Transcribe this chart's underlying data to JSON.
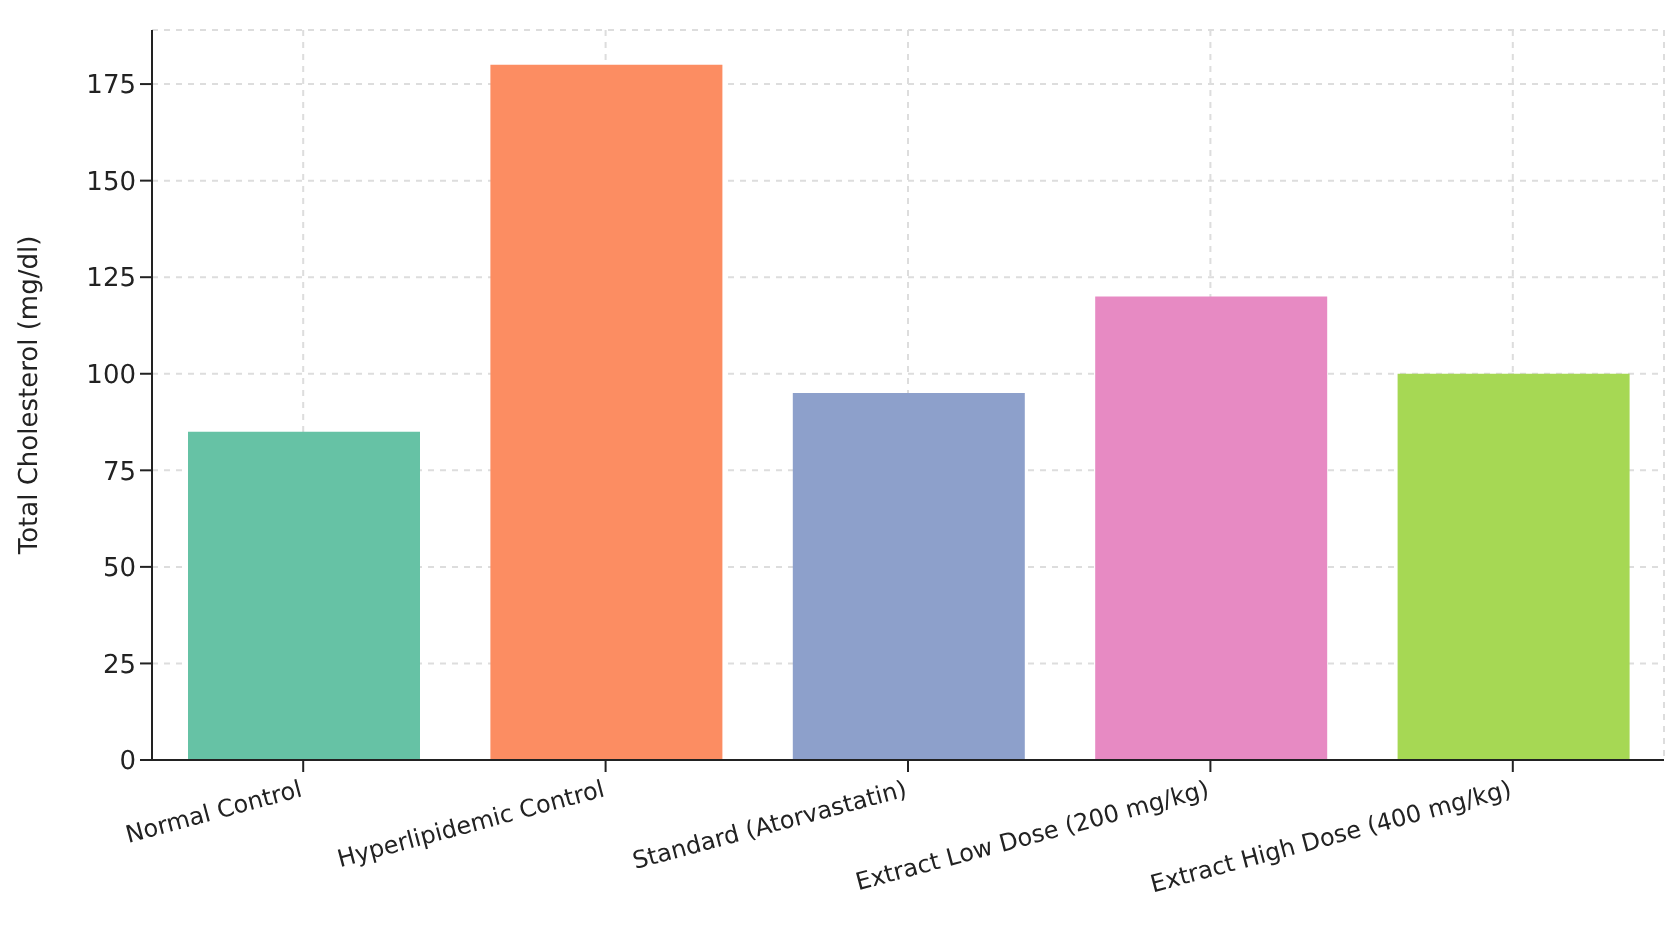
{
  "chart_data": {
    "type": "bar",
    "ylabel": "Total Cholesterol (mg/dl)",
    "categories": [
      "Normal Control",
      "Hyperlipidemic Control",
      "Standard (Atorvastatin)",
      "Extract Low Dose (200 mg/kg)",
      "Extract High Dose (400 mg/kg)"
    ],
    "values": [
      85,
      180,
      95,
      120,
      100
    ],
    "colors": [
      "#66c2a5",
      "#fc8d62",
      "#8da0cb",
      "#e78ac3",
      "#a6d854"
    ],
    "ylim": [
      0,
      189
    ],
    "yticks": [
      0,
      25,
      50,
      75,
      100,
      125,
      150,
      175
    ],
    "grid": true
  }
}
